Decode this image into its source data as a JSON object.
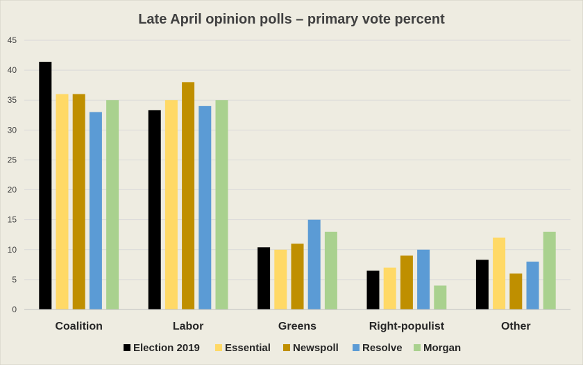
{
  "chart_data": {
    "type": "bar",
    "title": "Late April opinion polls  – primary vote percent",
    "categories": [
      "Coalition",
      "Labor",
      "Greens",
      "Right-populist",
      "Other"
    ],
    "series": [
      {
        "name": "Election 2019",
        "color": "#000000",
        "values": [
          41.4,
          33.3,
          10.4,
          6.5,
          8.3
        ]
      },
      {
        "name": "Essential",
        "color": "#ffd966",
        "values": [
          36,
          35,
          10,
          7,
          12
        ]
      },
      {
        "name": "Newspoll",
        "color": "#bf8f00",
        "values": [
          36,
          38,
          11,
          9,
          6
        ]
      },
      {
        "name": "Resolve",
        "color": "#5b9bd5",
        "values": [
          33,
          34,
          15,
          10,
          8
        ]
      },
      {
        "name": "Morgan",
        "color": "#a9d18e",
        "values": [
          35,
          35,
          13,
          4,
          13
        ]
      }
    ],
    "yticks": [
      "0",
      "5",
      "10",
      "15",
      "20",
      "25",
      "30",
      "35",
      "40",
      "45"
    ],
    "ylim": [
      0,
      45
    ],
    "grid": true,
    "legend": "bottom"
  }
}
